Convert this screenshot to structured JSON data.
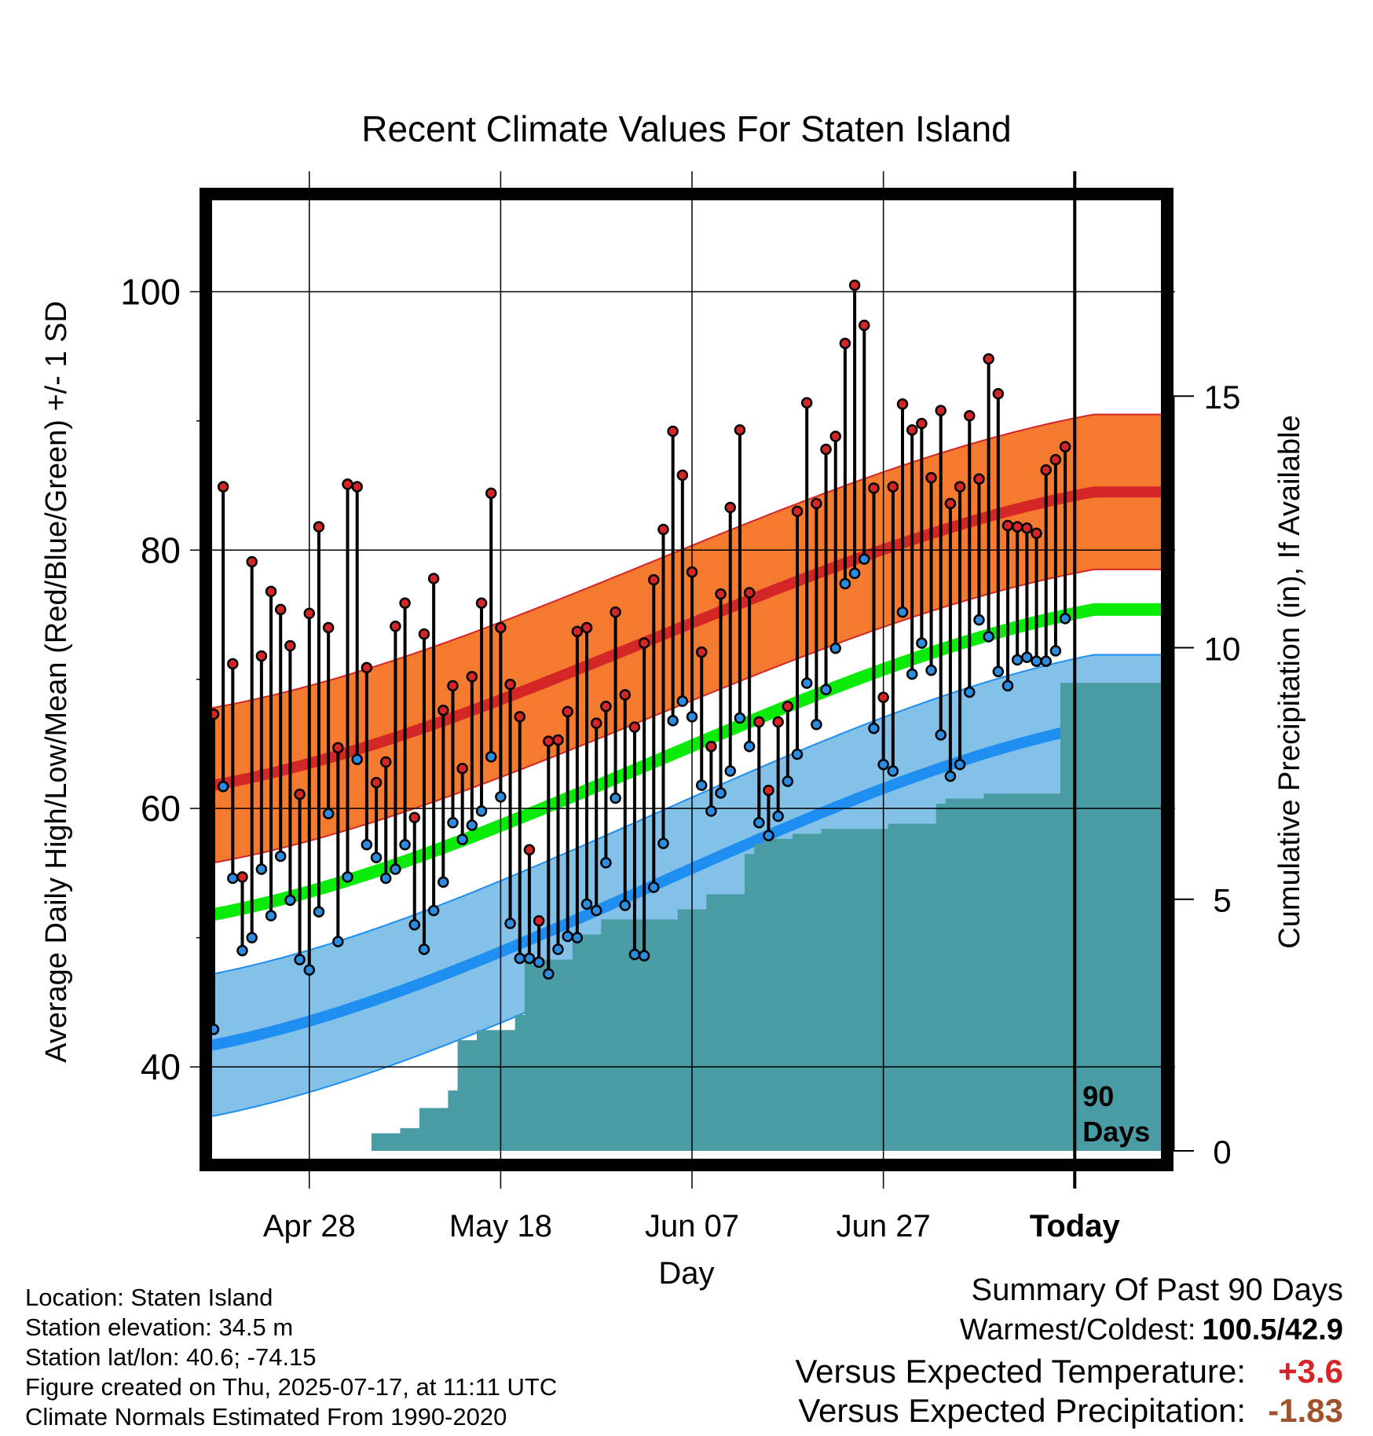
{
  "chart_data": {
    "type": "line",
    "title": "Recent Climate Values For Staten Island",
    "xlabel": "Day",
    "ylabel": "Average Daily High/Low/Mean (Red/Blue/Green) +/- 1 SD",
    "y2label": "Cumulative Precipitation (in), If Available",
    "ylim": [
      33.5,
      107.5
    ],
    "y2lim": [
      0,
      19
    ],
    "y_ticks": [
      "40",
      "60",
      "80",
      "100"
    ],
    "y2_ticks": [
      "0",
      "5",
      "10",
      "15"
    ],
    "x_ticks": [
      "Apr 28",
      "May 18",
      "Jun 07",
      "Jun 27",
      "Today"
    ],
    "x_tick_days": [
      10,
      30,
      50,
      70,
      90
    ],
    "xlim": [
      -0.9,
      99.5
    ],
    "today_marker_label": [
      "90",
      "Days"
    ],
    "daily_high": [
      67.3,
      84.9,
      71.2,
      54.7,
      79.1,
      71.8,
      76.8,
      75.4,
      72.6,
      61.1,
      75.1,
      81.8,
      74.0,
      64.7,
      85.1,
      84.9,
      70.9,
      62.0,
      63.6,
      74.1,
      75.9,
      59.3,
      73.5,
      77.8,
      67.6,
      69.5,
      63.1,
      70.2,
      75.9,
      84.4,
      74.0,
      69.6,
      67.1,
      56.8,
      51.3,
      65.2,
      65.3,
      67.5,
      73.7,
      74.0,
      66.6,
      67.9,
      75.2,
      68.8,
      66.3,
      72.8,
      77.7,
      81.6,
      89.2,
      85.8,
      78.3,
      72.1,
      64.8,
      76.6,
      83.3,
      89.3,
      76.7,
      66.7,
      61.4,
      66.7,
      67.9,
      83.0,
      91.4,
      83.6,
      87.8,
      88.8,
      96.0,
      100.5,
      97.4,
      84.8,
      68.6,
      84.9,
      91.3,
      89.3,
      89.8,
      85.6,
      90.8,
      83.6,
      84.9,
      90.4,
      85.5,
      94.8,
      92.1,
      81.9,
      81.8,
      81.7,
      81.3,
      86.2,
      87.0,
      88.0
    ],
    "daily_low": [
      42.9,
      61.7,
      54.6,
      49.0,
      50.0,
      55.3,
      51.7,
      56.3,
      52.9,
      48.3,
      47.5,
      52.0,
      59.6,
      49.7,
      54.7,
      63.8,
      57.2,
      56.2,
      54.6,
      55.3,
      57.2,
      51.0,
      49.1,
      52.1,
      54.3,
      58.9,
      57.6,
      58.7,
      59.8,
      64.0,
      60.9,
      51.1,
      48.4,
      48.4,
      48.1,
      47.2,
      49.1,
      50.1,
      50.0,
      52.6,
      52.1,
      55.8,
      60.8,
      52.5,
      48.7,
      48.6,
      53.9,
      57.3,
      66.8,
      68.3,
      67.1,
      61.8,
      59.8,
      61.2,
      62.9,
      67.0,
      64.8,
      58.9,
      57.9,
      59.4,
      62.1,
      64.2,
      69.7,
      66.5,
      69.2,
      72.4,
      77.4,
      78.2,
      79.3,
      66.2,
      63.4,
      62.9,
      75.2,
      70.4,
      72.8,
      70.7,
      65.7,
      62.5,
      63.4,
      69.0,
      74.6,
      73.3,
      70.6,
      69.5,
      71.5,
      71.7,
      71.4,
      71.4,
      72.2,
      74.7
    ],
    "normal_high": {
      "start": 61.8,
      "end": 84.5
    },
    "normal_low": {
      "start": 41.7,
      "end": 66.4
    },
    "normal_mean": {
      "start": 51.8,
      "end": 75.4
    },
    "normal_sd": {
      "high": 6.0,
      "low": 5.5
    },
    "cumulative_precipitation": [
      0,
      0,
      0,
      0,
      0,
      0,
      0,
      0,
      0,
      0,
      0,
      0,
      0,
      0,
      0,
      0,
      0,
      0.35,
      0.35,
      0.35,
      0.45,
      0.45,
      0.85,
      0.85,
      0.85,
      1.2,
      2.2,
      2.2,
      2.4,
      2.4,
      2.4,
      2.4,
      2.7,
      3.8,
      3.8,
      3.8,
      3.8,
      3.8,
      4.2,
      4.3,
      4.3,
      4.6,
      4.6,
      4.6,
      4.6,
      4.6,
      4.6,
      4.6,
      4.6,
      4.8,
      4.8,
      4.8,
      5.1,
      5.1,
      5.1,
      5.1,
      5.9,
      6.1,
      6.2,
      6.2,
      6.2,
      6.3,
      6.3,
      6.3,
      6.4,
      6.4,
      6.4,
      6.4,
      6.4,
      6.4,
      6.4,
      6.5,
      6.5,
      6.5,
      6.5,
      6.5,
      6.9,
      7.0,
      7.0,
      7.0,
      7.0,
      7.1,
      7.1,
      7.1,
      7.1,
      7.1,
      7.1,
      7.1,
      7.1,
      9.3,
      9.3,
      9.3,
      9.3,
      9.3,
      9.3,
      9.3,
      9.3,
      9.3,
      9.3,
      9.3
    ],
    "colors": {
      "high_band": "#f47a30",
      "high_line": "#d42626",
      "low_band": "#84c1e8",
      "low_line": "#1e8ef0",
      "mean_line": "#0aeb0a",
      "precip": "#4a9ca4",
      "high_dot": "#d42626",
      "low_dot": "#2b8ce0"
    }
  },
  "meta": {
    "location": "Location: Staten Island",
    "elevation": "Station elevation: 34.5 m",
    "latlon": "Station lat/lon: 40.6; -74.15",
    "created": "Figure created on Thu, 2025-07-17, at 11:11 UTC",
    "normals": "Climate Normals Estimated From 1990-2020"
  },
  "summary": {
    "heading": "Summary Of Past 90 Days",
    "warm_cold_label": "Warmest/Coldest:",
    "warm_cold_value": "100.5/42.9",
    "temp_label": "Versus Expected Temperature:",
    "temp_value": "+3.6",
    "temp_color": "#d42626",
    "precip_label": "Versus Expected Precipitation:",
    "precip_value": "-1.83",
    "precip_color": "#a0522d"
  }
}
